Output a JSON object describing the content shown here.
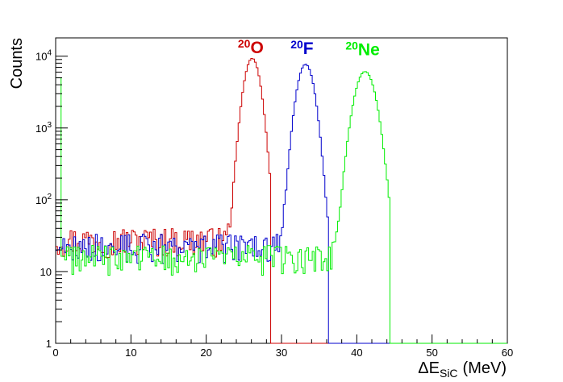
{
  "chart_data": {
    "type": "line",
    "title": "",
    "xlabel": "ΔE",
    "xlabel_sub": "SiC",
    "xlabel_unit": "(MeV)",
    "ylabel": "Counts",
    "xlim": [
      0,
      60
    ],
    "ylim": [
      1,
      18000
    ],
    "yscale": "log",
    "x_ticks": [
      0,
      10,
      20,
      30,
      40,
      50,
      60
    ],
    "x_tick_labels": [
      "0",
      "10",
      "20",
      "30",
      "40",
      "50",
      "60"
    ],
    "y_ticks": [
      {
        "value": 1,
        "base": "1",
        "exp": ""
      },
      {
        "value": 10,
        "base": "10",
        "exp": ""
      },
      {
        "value": 100,
        "base": "10",
        "exp": "2"
      },
      {
        "value": 1000,
        "base": "10",
        "exp": "3"
      },
      {
        "value": 10000,
        "base": "10",
        "exp": "4"
      }
    ],
    "grid": false,
    "legend": "none",
    "series": [
      {
        "name": "O",
        "mass": "20",
        "color": "#cc0000",
        "label_x": 24.2,
        "label_y": 11000,
        "noise_level": 28,
        "noise_range": [
          0,
          24
        ],
        "peak": {
          "center": 26.1,
          "sigma": 0.85,
          "amplitude": 9300
        },
        "cutoff": 28.5
      },
      {
        "name": "F",
        "mass": "20",
        "color": "#0000cc",
        "label_x": 31.2,
        "label_y": 10800,
        "noise_level": 23,
        "noise_range": [
          0,
          31
        ],
        "peak": {
          "center": 33.2,
          "sigma": 0.9,
          "amplitude": 7700
        },
        "cutoff": 36.2
      },
      {
        "name": "Ne",
        "mass": "20",
        "color": "#00ee00",
        "label_x": 38.5,
        "label_y": 10300,
        "noise_level": 16,
        "noise_range": [
          0,
          38.5
        ],
        "peak": {
          "center": 41.1,
          "sigma": 1.1,
          "amplitude": 6100
        },
        "cutoff": 44.3
      }
    ]
  }
}
